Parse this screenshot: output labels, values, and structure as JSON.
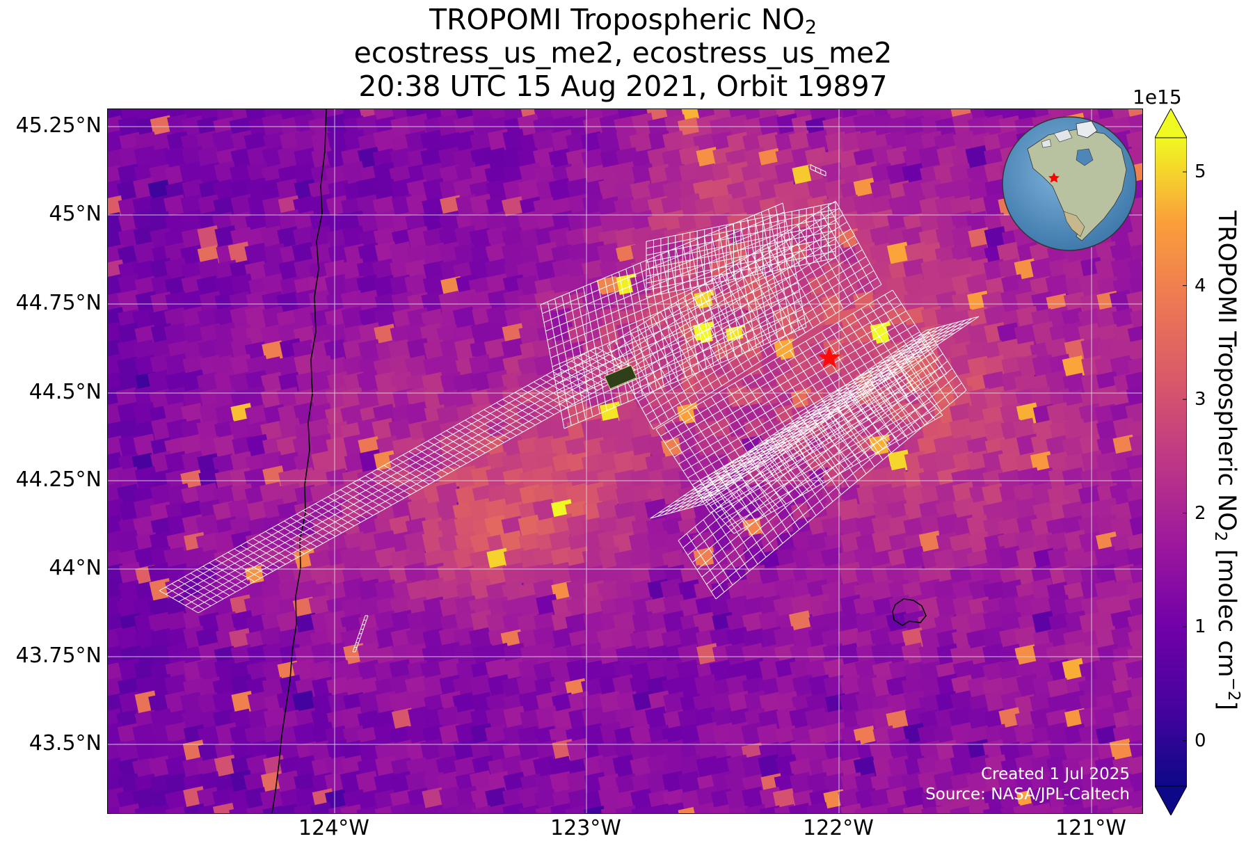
{
  "title": {
    "line1_prefix": "TROPOMI Tropospheric NO",
    "line1_sub": "2",
    "line2": "ecostress_us_me2, ecostress_us_me2",
    "line3": "20:38 UTC 15 Aug 2021, Orbit 19897"
  },
  "map": {
    "lat_labels": [
      "45.25°N",
      "45°N",
      "44.75°N",
      "44.5°N",
      "44.25°N",
      "44°N",
      "43.75°N",
      "43.5°N"
    ],
    "lon_labels": [
      "124°W",
      "123°W",
      "122°W",
      "121°W"
    ],
    "credits": {
      "created": "Created 1 Jul 2025",
      "source": "Source: NASA/JPL-Caltech"
    },
    "background_color": "#7a119f",
    "grid_color": "#d9d9d9",
    "footprint_outline_color": "#ffffff",
    "target_marker_color": "#ff0a0a"
  },
  "colorbar": {
    "exponent_label": "1e15",
    "tick_labels": [
      "0",
      "1",
      "2",
      "3",
      "4",
      "5"
    ],
    "label_prefix": "TROPOMI Tropospheric NO",
    "label_sub": "2",
    "label_mid": " [molec cm",
    "label_sup": "−2",
    "label_suffix": "]",
    "colormap": "plasma",
    "range": [
      -0.4,
      5.3
    ],
    "extend": "both"
  },
  "locator_globe": {
    "marker_color": "#ff0000",
    "ocean_color": "#5b93c2"
  }
}
